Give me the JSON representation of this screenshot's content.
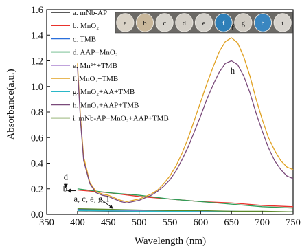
{
  "chart_data": {
    "type": "line",
    "title": "",
    "xlabel": "Wavelength (nm)",
    "ylabel": "Absorbance(a.u.)",
    "xlim": [
      350,
      750
    ],
    "ylim": [
      0.0,
      1.6
    ],
    "xticks": [
      "350",
      "400",
      "450",
      "500",
      "550",
      "600",
      "650",
      "700",
      "750"
    ],
    "yticks": [
      "0.0",
      "0.2",
      "0.4",
      "0.6",
      "0.8",
      "1.0",
      "1.2",
      "1.4",
      "1.6"
    ],
    "grid": false,
    "legend_position": "top-left",
    "series": [
      {
        "name": "a. mNb-AP",
        "color": "#222222",
        "x": [
          400,
          450,
          500,
          550,
          600,
          650,
          700,
          750
        ],
        "y": [
          0.02,
          0.02,
          0.02,
          0.02,
          0.02,
          0.02,
          0.02,
          0.02
        ]
      },
      {
        "name": "b. MnO₂",
        "color": "#e8322c",
        "x": [
          400,
          450,
          500,
          550,
          600,
          650,
          700,
          750
        ],
        "y": [
          0.19,
          0.17,
          0.14,
          0.12,
          0.1,
          0.09,
          0.07,
          0.06
        ]
      },
      {
        "name": "c. TMB",
        "color": "#2a6fdb",
        "x": [
          400,
          450,
          500,
          550,
          600,
          650,
          700,
          750
        ],
        "y": [
          0.04,
          0.035,
          0.03,
          0.03,
          0.025,
          0.025,
          0.02,
          0.02
        ]
      },
      {
        "name": "d. AAP+MnO₂",
        "color": "#2e9e58",
        "x": [
          400,
          450,
          500,
          550,
          600,
          650,
          700,
          750
        ],
        "y": [
          0.2,
          0.17,
          0.15,
          0.12,
          0.1,
          0.08,
          0.06,
          0.05
        ]
      },
      {
        "name": "e. Mn²⁺+TMB",
        "color": "#9b6cc6",
        "x": [
          400,
          450,
          500,
          550,
          600,
          650,
          700,
          750
        ],
        "y": [
          0.035,
          0.03,
          0.03,
          0.025,
          0.025,
          0.02,
          0.02,
          0.02
        ]
      },
      {
        "name": "f. MnO₂+TMB",
        "color": "#e0a020",
        "x": [
          400,
          405,
          410,
          420,
          430,
          440,
          450,
          460,
          470,
          480,
          490,
          500,
          510,
          520,
          530,
          540,
          550,
          560,
          570,
          580,
          590,
          600,
          610,
          620,
          630,
          640,
          650,
          660,
          670,
          680,
          690,
          700,
          710,
          720,
          730,
          740,
          750
        ],
        "y": [
          1.18,
          0.75,
          0.45,
          0.25,
          0.18,
          0.16,
          0.15,
          0.13,
          0.11,
          0.1,
          0.11,
          0.12,
          0.14,
          0.16,
          0.19,
          0.24,
          0.3,
          0.38,
          0.48,
          0.6,
          0.74,
          0.88,
          1.02,
          1.15,
          1.27,
          1.35,
          1.38,
          1.34,
          1.23,
          1.08,
          0.9,
          0.74,
          0.6,
          0.5,
          0.42,
          0.37,
          0.35
        ]
      },
      {
        "name": "g. MnO₂+AA+TMB",
        "color": "#2ab7c8",
        "x": [
          400,
          450,
          500,
          550,
          600,
          650,
          700,
          750
        ],
        "y": [
          0.03,
          0.028,
          0.025,
          0.025,
          0.022,
          0.02,
          0.02,
          0.02
        ]
      },
      {
        "name": "h. MnO₂+AAP+TMB",
        "color": "#7a4a7a",
        "x": [
          400,
          405,
          410,
          420,
          430,
          440,
          450,
          460,
          470,
          480,
          490,
          500,
          510,
          520,
          530,
          540,
          550,
          560,
          570,
          580,
          590,
          600,
          610,
          620,
          630,
          640,
          650,
          660,
          670,
          680,
          690,
          700,
          710,
          720,
          730,
          740,
          750
        ],
        "y": [
          1.15,
          0.72,
          0.42,
          0.24,
          0.17,
          0.15,
          0.14,
          0.12,
          0.1,
          0.09,
          0.1,
          0.11,
          0.13,
          0.15,
          0.18,
          0.22,
          0.27,
          0.34,
          0.43,
          0.53,
          0.65,
          0.77,
          0.9,
          1.01,
          1.11,
          1.18,
          1.2,
          1.17,
          1.08,
          0.95,
          0.79,
          0.65,
          0.52,
          0.42,
          0.35,
          0.3,
          0.28
        ]
      },
      {
        "name": "i. mNb-AP+MnO₂+AAP+TMB",
        "color": "#5b8a2a",
        "x": [
          400,
          450,
          500,
          550,
          600,
          650,
          700,
          750
        ],
        "y": [
          0.045,
          0.04,
          0.035,
          0.03,
          0.03,
          0.025,
          0.025,
          0.02
        ]
      }
    ],
    "annotations": [
      {
        "text": "f",
        "x": 652,
        "y": 1.44
      },
      {
        "text": "h",
        "x": 652,
        "y": 1.1
      },
      {
        "text": "d",
        "x": 381,
        "y": 0.27
      },
      {
        "text": "b",
        "x": 380,
        "y": 0.18
      },
      {
        "text": "a, c, e, g, i",
        "x": 394,
        "y": 0.1
      }
    ],
    "inset_vials": [
      "a",
      "b",
      "c",
      "d",
      "e",
      "f",
      "g",
      "h",
      "i"
    ],
    "inset_vial_colors": [
      "#d9d2c6",
      "#c9b79a",
      "#d6d3cc",
      "#d3cec6",
      "#d2cfc9",
      "#2f7fb8",
      "#cfcac2",
      "#3a86c0",
      "#d7d3cd"
    ]
  }
}
